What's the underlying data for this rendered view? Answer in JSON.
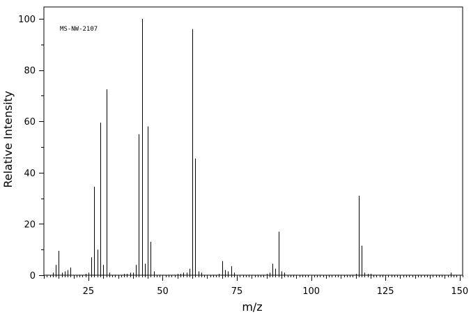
{
  "chart_data": {
    "type": "bar",
    "annotation": "MS-NW-2107",
    "xlabel": "m/z",
    "ylabel": "Relative Intensity",
    "xlim": [
      10,
      151
    ],
    "ylim": [
      0,
      100
    ],
    "xticks": [
      25,
      50,
      75,
      100,
      125,
      150
    ],
    "xtick_labels": [
      "25",
      "50",
      "75",
      "100",
      "125",
      "150"
    ],
    "yticks": [
      0,
      20,
      40,
      60,
      80,
      100
    ],
    "ytick_labels": [
      "0",
      "20",
      "40",
      "60",
      "80",
      "100"
    ],
    "grid": false,
    "series": [
      {
        "x": [
          13,
          14,
          15,
          16,
          17,
          18,
          19,
          24,
          25,
          26,
          27,
          28,
          29,
          30,
          31,
          32,
          37,
          38,
          39,
          40,
          41,
          42,
          43,
          44,
          45,
          46,
          47,
          55,
          56,
          57,
          58,
          59,
          60,
          61,
          62,
          63,
          69,
          70,
          71,
          72,
          73,
          74,
          85,
          86,
          87,
          88,
          89,
          90,
          91,
          115,
          116,
          117,
          118,
          119,
          120,
          147
        ],
        "values": [
          1,
          4,
          9.5,
          1,
          1.5,
          2,
          3,
          0.5,
          1,
          7,
          34.5,
          10,
          59.5,
          4,
          72.5,
          1,
          0.5,
          0.5,
          1,
          1,
          4,
          55,
          100,
          4.5,
          58,
          13,
          1.5,
          0.5,
          0.5,
          1,
          1,
          2.5,
          96,
          45.5,
          1.5,
          1,
          0.5,
          5.5,
          2,
          1.5,
          3.5,
          1,
          0.5,
          1,
          4.5,
          2.5,
          17,
          1.5,
          1,
          0.5,
          31,
          11.5,
          1,
          0.5,
          0.5,
          1
        ]
      }
    ]
  }
}
